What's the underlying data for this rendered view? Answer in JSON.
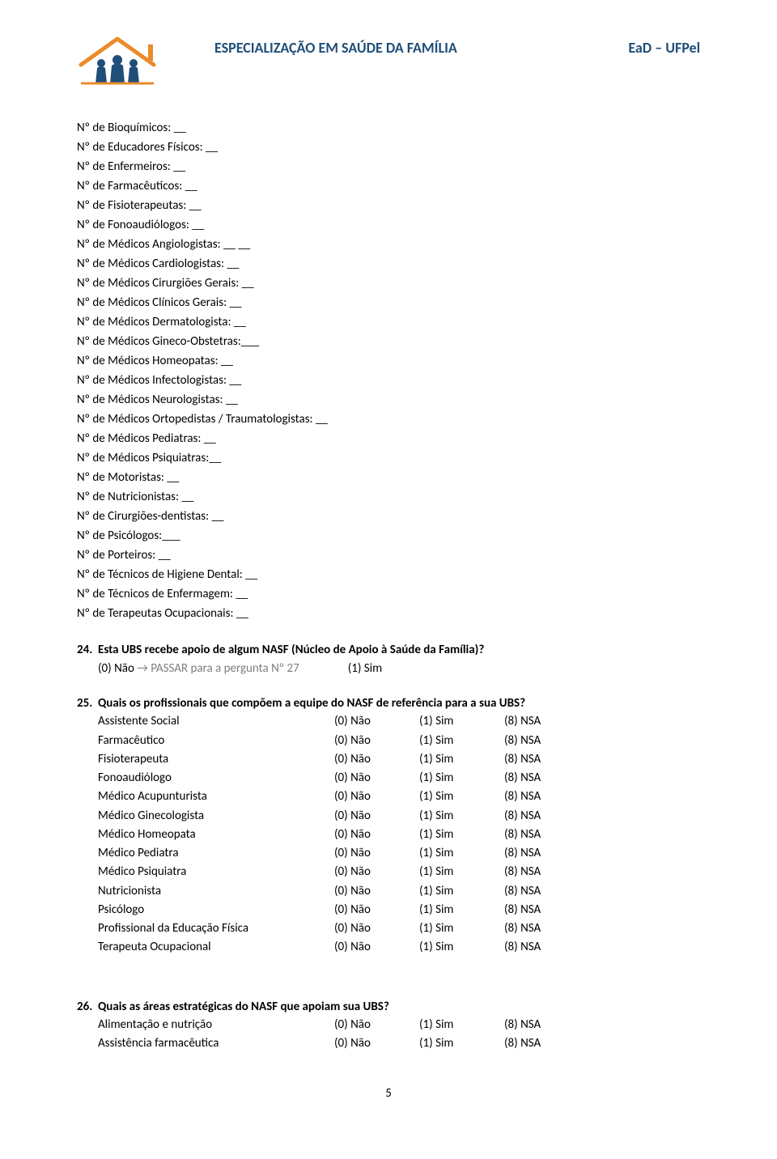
{
  "header": {
    "title": "ESPECIALIZAÇÃO EM SAÚDE DA FAMÍLIA",
    "brand": "EaD – UFPel",
    "logo": {
      "roof_color": "#e98b2a",
      "family_color": "#1f4e79"
    }
  },
  "fill_lines": [
    "Nº de Bioquímicos: __",
    "Nº de Educadores Físicos: __",
    "Nº de Enfermeiros: __",
    "Nº de Farmacêuticos: __",
    "Nº de Fisioterapeutas: __",
    "Nº de Fonoaudiólogos: __",
    "Nº de Médicos Angiologistas: __ __",
    "Nº de Médicos Cardiologistas: __",
    "Nº de Médicos Cirurgiões Gerais: __",
    "Nº de Médicos Clínicos Gerais: __",
    "Nº de Médicos Dermatologista: __",
    "Nº de Médicos Gineco-Obstetras:___",
    "Nº de Médicos Homeopatas: __",
    "Nº de Médicos Infectologistas: __",
    "Nº de Médicos Neurologistas: __",
    "Nº de Médicos Ortopedistas / Traumatologistas: __",
    "Nº de Médicos Pediatras: __",
    "Nº de Médicos Psiquiatras:__",
    "Nº de Motoristas: __",
    "Nº de Nutricionistas: __",
    "Nº de Cirurgiões-dentistas: __",
    "Nº de Psicólogos:___",
    "Nº de Porteiros: __",
    "Nº de Técnicos de Higiene Dental: __",
    "Nº de Técnicos de Enfermagem: __",
    "Nº de Terapeutas Ocupacionais: __"
  ],
  "q24": {
    "num": "24.",
    "text": "Esta UBS recebe apoio de algum NASF (Núcleo de Apoio à Saúde da Família)?",
    "opt0": "(0) Não ",
    "arrow": "→",
    "skip": " PASSAR para a pergunta Nº 27",
    "opt1": "(1) Sim"
  },
  "q25": {
    "num": "25.",
    "text": "Quais os profissionais que compõem a equipe do NASF de referência para a sua UBS?",
    "opts": {
      "no": "(0) Não",
      "yes": "(1) Sim",
      "nsa": "(8) NSA"
    },
    "rows": [
      "Assistente Social",
      "Farmacêutico",
      "Fisioterapeuta",
      "Fonoaudiólogo",
      "Médico Acupunturista",
      "Médico Ginecologista",
      "Médico Homeopata",
      "Médico Pediatra",
      "Médico Psiquiatra",
      "Nutricionista",
      "Psicólogo",
      "Profissional da Educação Física",
      "Terapeuta Ocupacional"
    ]
  },
  "q26": {
    "num": "26.",
    "text": "Quais as áreas estratégicas do NASF que apoiam sua UBS?",
    "opts": {
      "no": "(0) Não",
      "yes": "(1) Sim",
      "nsa": "(8) NSA"
    },
    "rows": [
      "Alimentação e nutrição",
      "Assistência farmacêutica"
    ]
  },
  "page_number": "5"
}
